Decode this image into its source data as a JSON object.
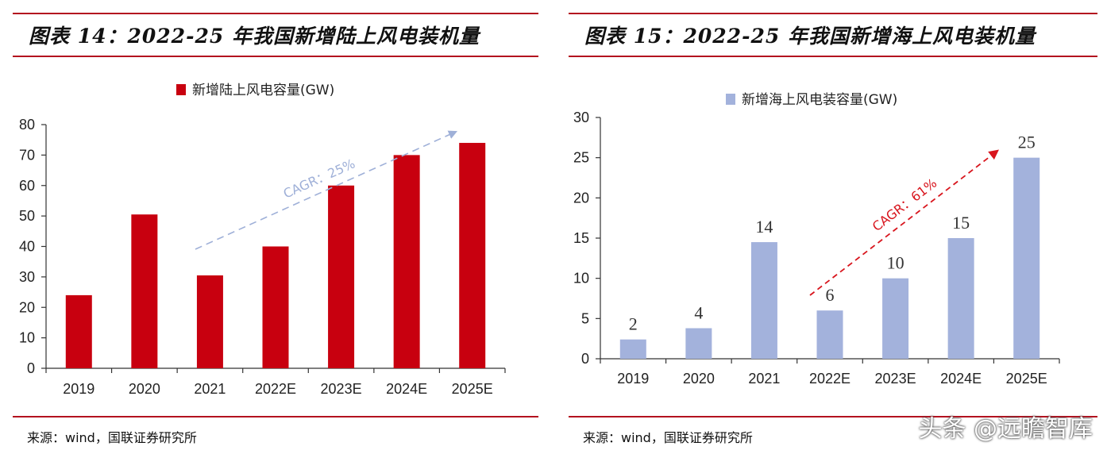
{
  "colors": {
    "accent": "#b3121f",
    "onshore_bar": "#c8000f",
    "offshore_bar": "#a3b2dc",
    "onshore_arrow": "#9fb0d8",
    "offshore_arrow": "#d8151d"
  },
  "left": {
    "title": "图表 14：2022-25 年我国新增陆上风电装机量",
    "source": "来源：wind，国联证券研究所"
  },
  "right": {
    "title": "图表 15：2022-25 年我国新增海上风电装机量",
    "source": "来源：wind，国联证券研究所"
  },
  "watermark": "头条 @远瞻智库",
  "chart_data": [
    {
      "type": "bar",
      "title": "",
      "legend": "新增陆上风电容量(GW)",
      "categories": [
        "2019",
        "2020",
        "2021",
        "2022E",
        "2023E",
        "2024E",
        "2025E"
      ],
      "values": [
        24,
        50.5,
        30.5,
        40,
        60,
        70,
        74
      ],
      "ylim": [
        0,
        80
      ],
      "yticks": [
        0,
        10,
        20,
        30,
        40,
        50,
        60,
        70,
        80
      ],
      "xlabel": "",
      "ylabel": "",
      "data_labels": false,
      "annotation": "CAGR：25%"
    },
    {
      "type": "bar",
      "title": "",
      "legend": "新增海上风电装容量(GW)",
      "categories": [
        "2019",
        "2020",
        "2021",
        "2022E",
        "2023E",
        "2024E",
        "2025E"
      ],
      "values": [
        2.4,
        3.8,
        14.5,
        6,
        10,
        15,
        25
      ],
      "data_labels": [
        "2",
        "4",
        "14",
        "6",
        "10",
        "15",
        "25"
      ],
      "ylim": [
        0,
        30
      ],
      "yticks": [
        0,
        5,
        10,
        15,
        20,
        25,
        30
      ],
      "xlabel": "",
      "ylabel": "",
      "annotation": "CAGR：61%"
    }
  ]
}
